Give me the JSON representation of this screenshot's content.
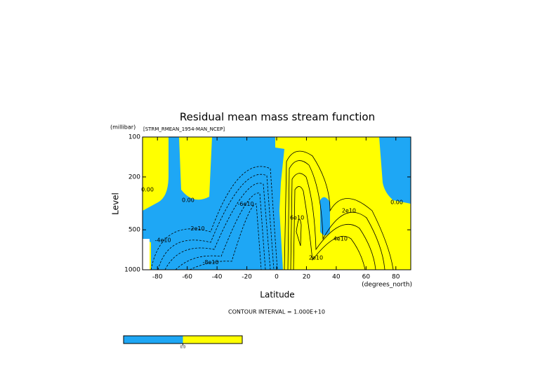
{
  "chart_data": {
    "type": "contour",
    "title": "Residual mean mass stream function",
    "subtitle": "[STRM_RMEAN_1954-MAN_NCEP]",
    "y_label": "Level",
    "y_units": "(millibar)",
    "x_label": "Latitude",
    "x_units": "(degrees_north)",
    "annotation": "CONTOUR INTERVAL = 1.000E+10",
    "xlim": [
      -90,
      90
    ],
    "xticks": [
      -80,
      -60,
      -40,
      -20,
      0,
      20,
      40,
      60,
      80
    ],
    "ylim": [
      1000,
      100
    ],
    "yticks": [
      100,
      200,
      500,
      1000
    ],
    "log_scale": true,
    "contour_labels": [
      {
        "text": "0.00",
        "lat": -86.7,
        "level": 250
      },
      {
        "text": "0.00",
        "lat": -59.4,
        "level": 300
      },
      {
        "text": "-2e10",
        "lat": -53.7,
        "level": 490
      },
      {
        "text": "-4e10",
        "lat": -76.3,
        "level": 600
      },
      {
        "text": "-6e10",
        "lat": -20.7,
        "level": 320
      },
      {
        "text": "-8e10",
        "lat": -44.3,
        "level": 880
      },
      {
        "text": "2e10",
        "lat": 48.5,
        "level": 360
      },
      {
        "text": "4e10",
        "lat": 42.8,
        "level": 585
      },
      {
        "text": "6e10",
        "lat": 13.7,
        "level": 405
      },
      {
        "text": "0.00",
        "lat": 80.6,
        "level": 310
      },
      {
        "text": "2e10",
        "lat": 26.4,
        "level": 813
      }
    ],
    "colorbar": {
      "colors": [
        "#1ea7f5",
        "#ffff00"
      ],
      "labels": [
        "0.0"
      ]
    }
  }
}
